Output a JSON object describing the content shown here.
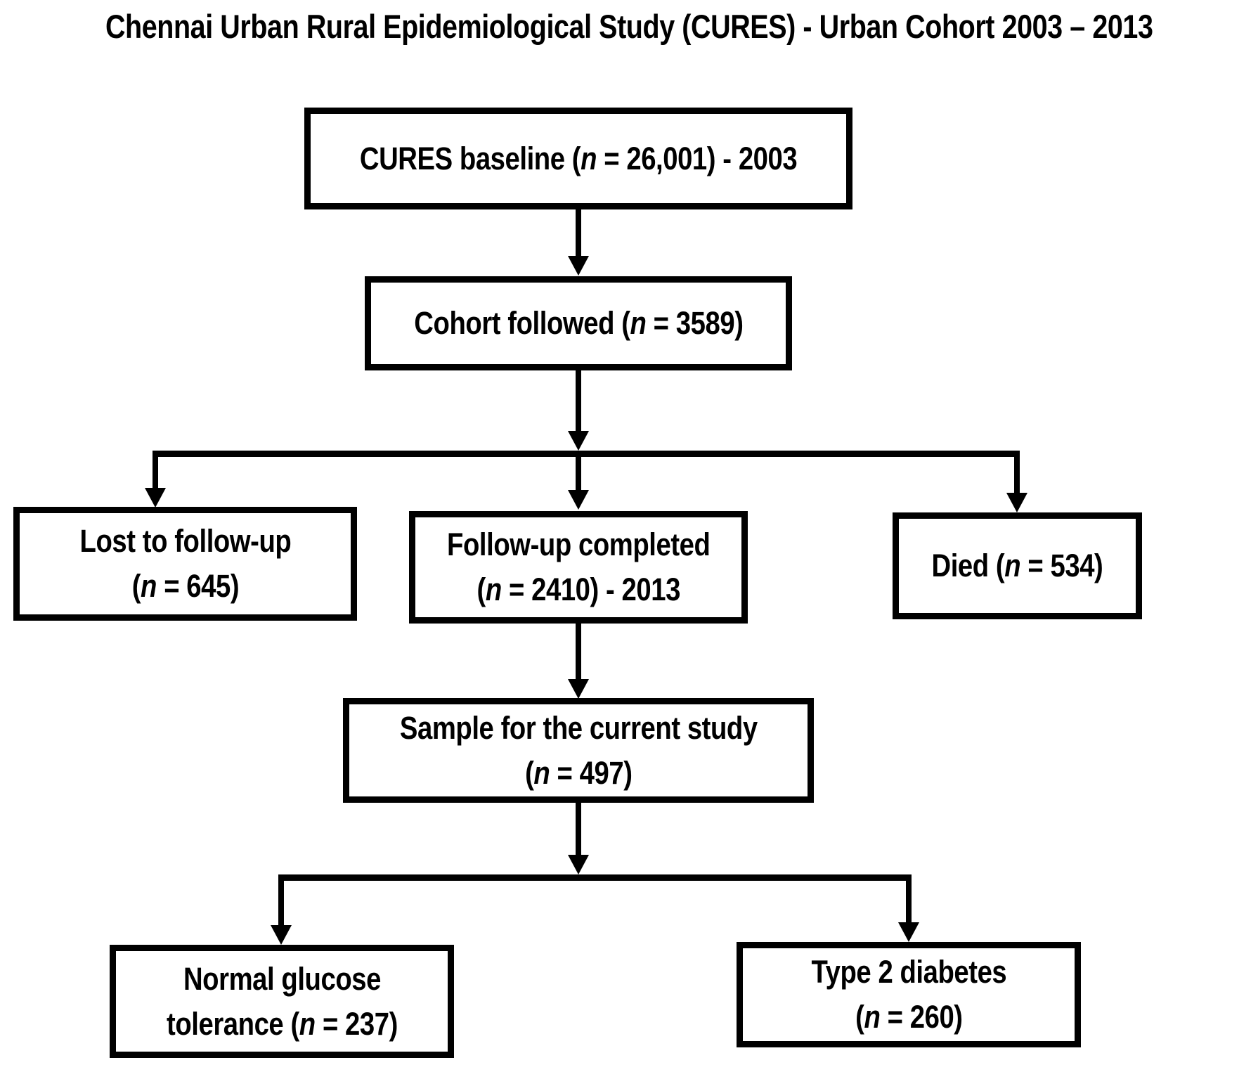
{
  "title": "Chennai Urban Rural Epidemiological Study (CURES) - Urban Cohort 2003 – 2013",
  "colors": {
    "ink": "#000000",
    "background": "#ffffff"
  },
  "boxes": {
    "baseline": {
      "segments": [
        {
          "t": "CURES baseline ("
        },
        {
          "t": "n",
          "i": true
        },
        {
          "t": " = 26,001) - 2003"
        }
      ]
    },
    "cohort": {
      "segments": [
        {
          "t": "Cohort followed ("
        },
        {
          "t": "n",
          "i": true
        },
        {
          "t": " = 3589)"
        }
      ]
    },
    "lost": {
      "segments": [
        {
          "t": "Lost to follow-up\n("
        },
        {
          "t": "n",
          "i": true
        },
        {
          "t": " = 645)"
        }
      ]
    },
    "followup": {
      "segments": [
        {
          "t": "Follow-up completed\n("
        },
        {
          "t": "n",
          "i": true
        },
        {
          "t": " = 2410) - 2013"
        }
      ]
    },
    "died": {
      "segments": [
        {
          "t": "Died ("
        },
        {
          "t": "n",
          "i": true
        },
        {
          "t": " = 534)"
        }
      ]
    },
    "sample": {
      "segments": [
        {
          "t": "Sample for the current study\n("
        },
        {
          "t": "n",
          "i": true
        },
        {
          "t": " = 497)"
        }
      ]
    },
    "normal_glucose": {
      "segments": [
        {
          "t": "Normal glucose\ntolerance ("
        },
        {
          "t": "n",
          "i": true
        },
        {
          "t": " = 237)"
        }
      ]
    },
    "type2_diabetes": {
      "segments": [
        {
          "t": "Type 2 diabetes\n("
        },
        {
          "t": "n",
          "i": true
        },
        {
          "t": " = 260)"
        }
      ]
    }
  },
  "edges": [
    {
      "from": "baseline",
      "to": "cohort"
    },
    {
      "from": "cohort",
      "to": [
        "lost",
        "followup",
        "died"
      ]
    },
    {
      "from": "followup",
      "to": "sample"
    },
    {
      "from": "sample",
      "to": [
        "normal_glucose",
        "type2_diabetes"
      ]
    }
  ]
}
